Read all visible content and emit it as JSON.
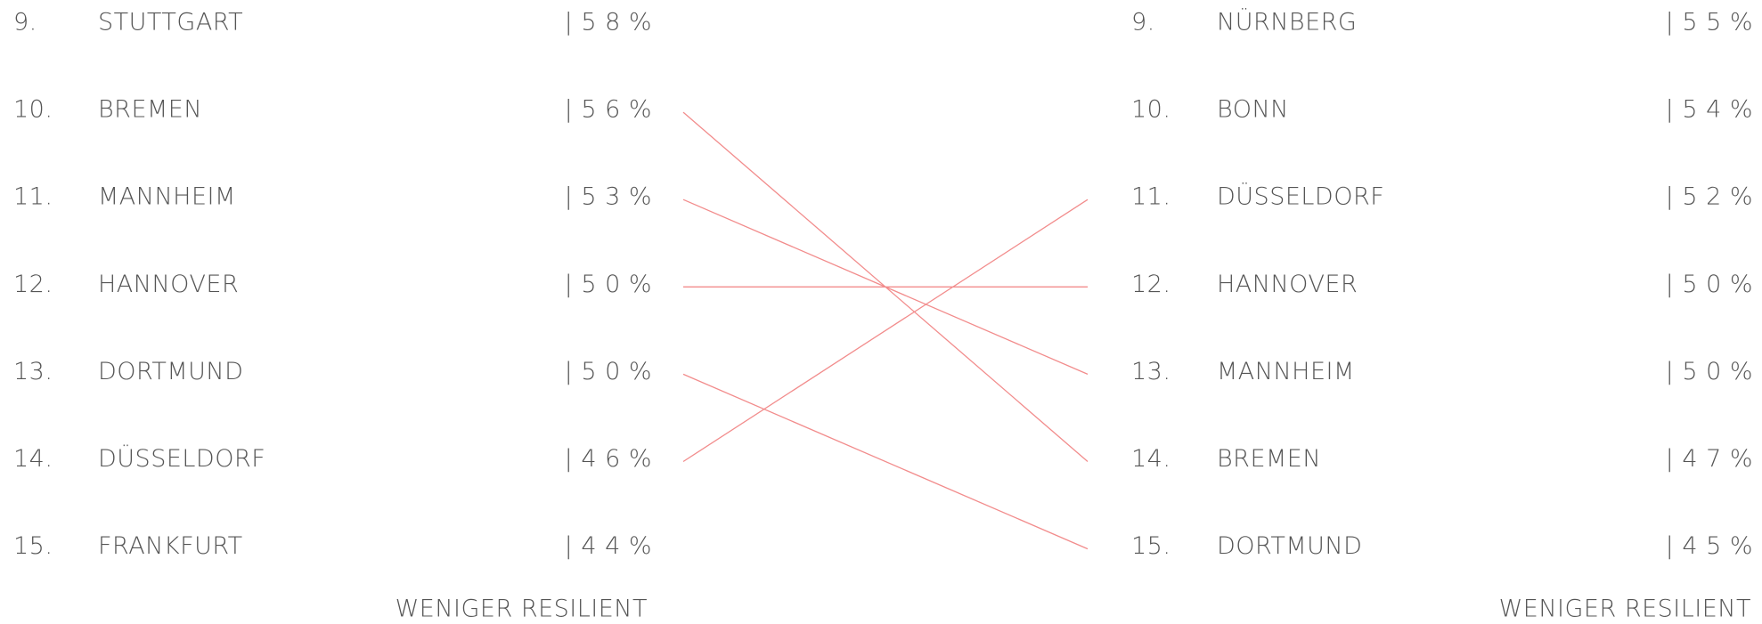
{
  "left": {
    "rows": [
      {
        "rank": "9.",
        "name": "STUTTGART",
        "value": "| 5 8 %"
      },
      {
        "rank": "10.",
        "name": "BREMEN",
        "value": "| 5 6 %"
      },
      {
        "rank": "11.",
        "name": "MANNHEIM",
        "value": "| 5 3 %"
      },
      {
        "rank": "12.",
        "name": "HANNOVER",
        "value": "| 5 0 %"
      },
      {
        "rank": "13.",
        "name": "DORTMUND",
        "value": "| 5 0 %"
      },
      {
        "rank": "14.",
        "name": "DÜSSELDORF",
        "value": "| 4 6 %"
      },
      {
        "rank": "15.",
        "name": "FRANKFURT",
        "value": "| 4 4 %"
      }
    ],
    "footer": "WENIGER RESILIENT"
  },
  "right": {
    "rows": [
      {
        "rank": "9.",
        "name": "NÜRNBERG",
        "value": "| 5 5 %"
      },
      {
        "rank": "10.",
        "name": "BONN",
        "value": "| 5 4 %"
      },
      {
        "rank": "11.",
        "name": "DÜSSELDORF",
        "value": "| 5 2 %"
      },
      {
        "rank": "12.",
        "name": "HANNOVER",
        "value": "| 5 0 %"
      },
      {
        "rank": "13.",
        "name": "MANNHEIM",
        "value": "| 5 0 %"
      },
      {
        "rank": "14.",
        "name": "BREMEN",
        "value": "| 4 7 %"
      },
      {
        "rank": "15.",
        "name": "DORTMUND",
        "value": "| 4 5 %"
      }
    ],
    "footer": "WENIGER RESILIENT"
  }
}
